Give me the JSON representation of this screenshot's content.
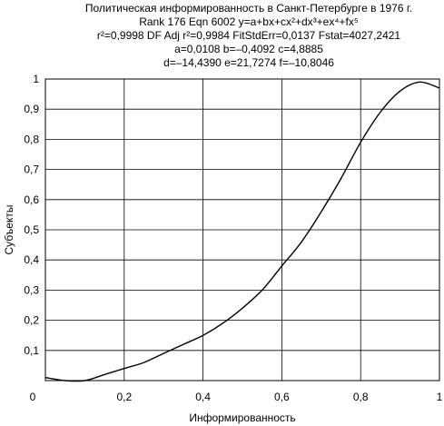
{
  "chart_data": {
    "type": "line",
    "title_lines": [
      "Политическая информированность в Санкт-Петербурге в 1976 г.",
      "Rank 176 Eqn 6002 y=a+bx+cx²+dx³+ex⁴+fx⁵",
      "r²=0,9998 DF Adj r²=0,9984 FitStdErr=0,0137 Fstat=4027,2421",
      "a=0,0108 b=–0,4092 c=4,8885",
      "d=–14,4390 e=21,7274 f=–10,8046"
    ],
    "xlabel": "Информированность",
    "ylabel": "Субъекты",
    "xlim": [
      0,
      1
    ],
    "ylim": [
      0,
      1
    ],
    "x_ticks": [
      "0",
      "0,2",
      "0,4",
      "0,6",
      "0,8",
      "1"
    ],
    "y_ticks": [
      "0",
      "0,1",
      "0,2",
      "0,3",
      "0,4",
      "0,5",
      "0,6",
      "0,7",
      "0,8",
      "0,9",
      "1"
    ],
    "grid": true,
    "series": [
      {
        "x": [
          0,
          0.05,
          0.1,
          0.15,
          0.2,
          0.25,
          0.3,
          0.35,
          0.4,
          0.45,
          0.5,
          0.55,
          0.6,
          0.65,
          0.7,
          0.75,
          0.8,
          0.85,
          0.9,
          0.95,
          1
        ],
        "y": [
          0.01,
          0.0,
          0.0,
          0.02,
          0.04,
          0.06,
          0.09,
          0.12,
          0.15,
          0.19,
          0.24,
          0.3,
          0.38,
          0.46,
          0.56,
          0.67,
          0.79,
          0.89,
          0.96,
          0.99,
          0.97
        ]
      }
    ]
  }
}
